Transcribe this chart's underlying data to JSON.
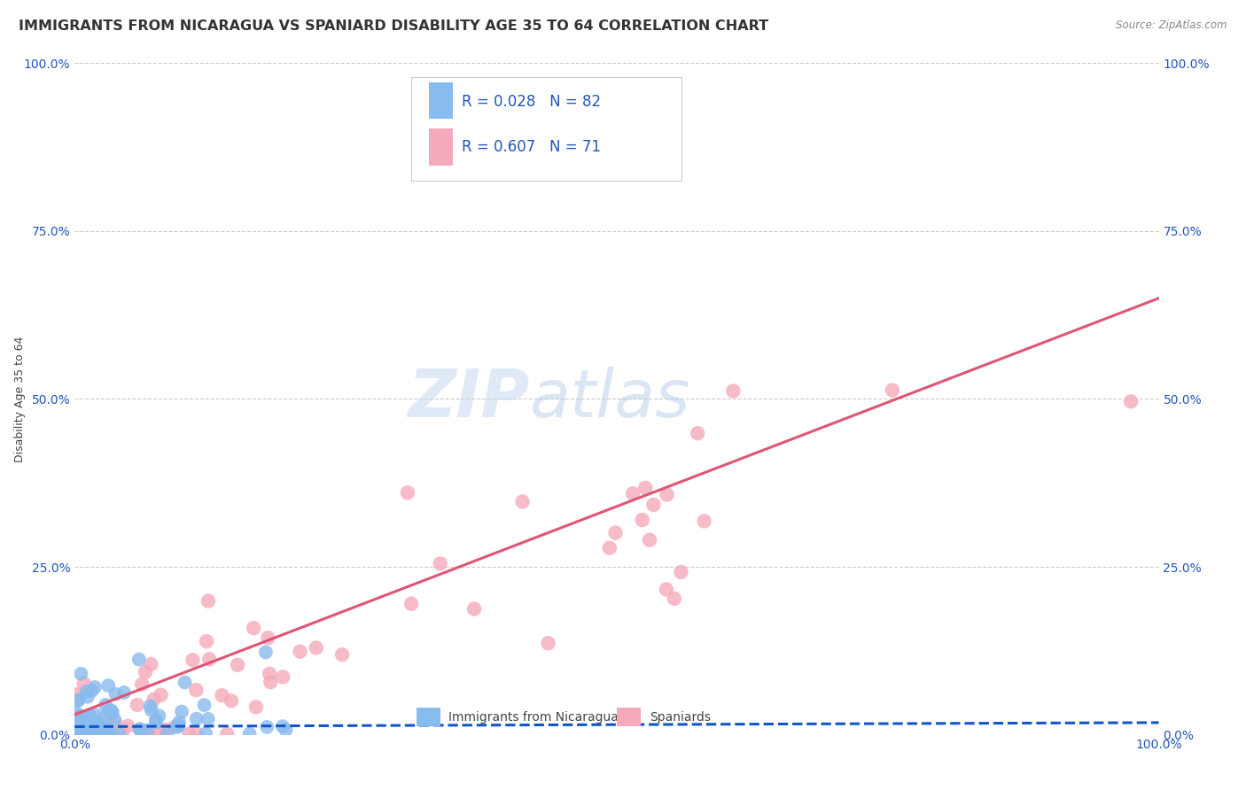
{
  "title": "IMMIGRANTS FROM NICARAGUA VS SPANIARD DISABILITY AGE 35 TO 64 CORRELATION CHART",
  "source": "Source: ZipAtlas.com",
  "ylabel": "Disability Age 35 to 64",
  "xlim": [
    0,
    1
  ],
  "ylim": [
    0,
    1
  ],
  "xtick_labels": [
    "0.0%",
    "100.0%"
  ],
  "ytick_labels": [
    "0.0%",
    "25.0%",
    "50.0%",
    "75.0%",
    "100.0%"
  ],
  "ytick_positions": [
    0.0,
    0.25,
    0.5,
    0.75,
    1.0
  ],
  "nicaragua_color": "#88bbee",
  "spaniard_color": "#f5aabb",
  "nicaragua_line_color": "#1155cc",
  "spaniard_line_color": "#e05575",
  "background_color": "#ffffff",
  "R_nicaragua": 0.028,
  "N_nicaragua": 82,
  "R_spaniard": 0.607,
  "N_spaniard": 71,
  "legend_label_nicaragua": "Immigrants from Nicaragua",
  "legend_label_spaniard": "Spaniards",
  "title_fontsize": 11.5,
  "axis_label_fontsize": 9,
  "tick_fontsize": 10,
  "watermark_color": "#ccddf5",
  "grid_color": "#cccccc",
  "spa_line_y0": 0.03,
  "spa_line_y1": 0.65,
  "nic_line_y0": 0.012,
  "nic_line_y1": 0.018
}
